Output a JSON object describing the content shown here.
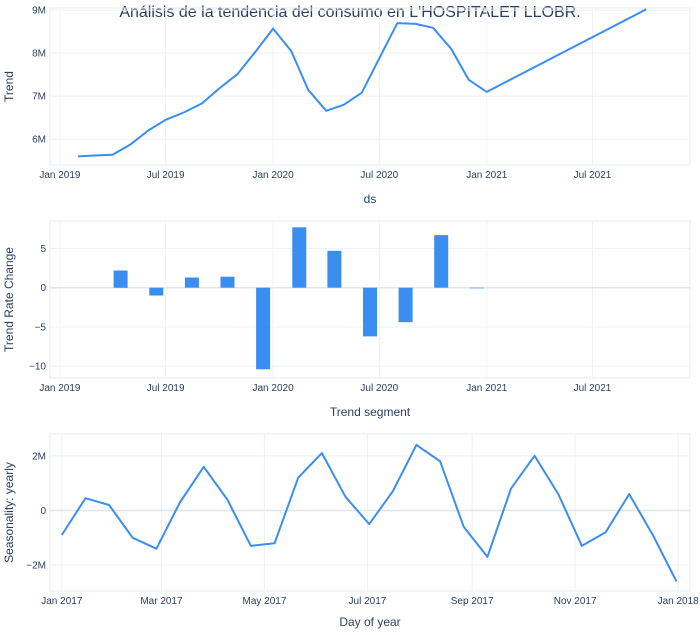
{
  "title": "Análisis de la tendencia del consumo en L'HOSPITALET LLOBR.",
  "colors": {
    "line": "#3a8ef0",
    "bar": "#3a8ef0"
  },
  "chart_data": [
    {
      "type": "line",
      "xlabel": "ds",
      "ylabel": "Trend",
      "xlim": [
        "2018-12-15",
        "2021-12-15"
      ],
      "ylim": [
        5400000,
        9050000
      ],
      "x_ticks": [
        "2019-01-01",
        "2019-07-01",
        "2020-01-01",
        "2020-07-01",
        "2021-01-01",
        "2021-07-01"
      ],
      "x_tick_labels": [
        "Jan 2019",
        "Jul 2019",
        "Jan 2020",
        "Jul 2020",
        "Jan 2021",
        "Jul 2021"
      ],
      "y_ticks": [
        6000000,
        7000000,
        8000000,
        9000000
      ],
      "y_tick_labels": [
        "6M",
        "7M",
        "8M",
        "9M"
      ],
      "series": [
        {
          "x": [
            "2019-02-01",
            "2019-03-01",
            "2019-04-01",
            "2019-05-01",
            "2019-06-01",
            "2019-07-01",
            "2019-08-01",
            "2019-09-01",
            "2019-10-01",
            "2019-11-01",
            "2019-12-01",
            "2020-01-01",
            "2020-02-01",
            "2020-03-01",
            "2020-04-01",
            "2020-05-01",
            "2020-06-01",
            "2020-07-01",
            "2020-08-01",
            "2020-09-01",
            "2020-10-01",
            "2020-11-01",
            "2020-12-01",
            "2021-01-01",
            "2021-10-01"
          ],
          "y": [
            5600000,
            5620000,
            5640000,
            5870000,
            6200000,
            6450000,
            6620000,
            6830000,
            7180000,
            7510000,
            8020000,
            8570000,
            8050000,
            7150000,
            6660000,
            6800000,
            7080000,
            7880000,
            8700000,
            8680000,
            8590000,
            8100000,
            7380000,
            7100000,
            9020000
          ]
        }
      ]
    },
    {
      "type": "bar",
      "xlabel": "Trend segment",
      "ylabel": "Trend Rate Change",
      "xlim": [
        "2018-12-15",
        "2021-12-15"
      ],
      "ylim": [
        -11.5,
        8.5
      ],
      "x_ticks": [
        "2019-01-01",
        "2019-07-01",
        "2020-01-01",
        "2020-07-01",
        "2021-01-01",
        "2021-07-01"
      ],
      "x_tick_labels": [
        "Jan 2019",
        "Jul 2019",
        "Jan 2020",
        "Jul 2020",
        "Jan 2021",
        "Jul 2021"
      ],
      "y_ticks": [
        5,
        0,
        -5,
        -10
      ],
      "y_tick_labels": [
        "5",
        "0",
        "−5",
        "−10"
      ],
      "bar_width_days": 24,
      "series": [
        {
          "x": [
            "2019-04-15",
            "2019-06-15",
            "2019-08-15",
            "2019-10-15",
            "2019-12-15",
            "2020-02-15",
            "2020-04-15",
            "2020-06-15",
            "2020-08-15",
            "2020-10-15",
            "2020-12-15"
          ],
          "y": [
            2.2,
            -1.0,
            1.3,
            1.4,
            -10.4,
            7.7,
            4.7,
            -6.2,
            -4.4,
            6.7,
            0
          ]
        }
      ]
    },
    {
      "type": "line",
      "xlabel": "Day of year",
      "ylabel": "Seasonality: yearly",
      "xlim": [
        "2016-12-25",
        "2018-01-08"
      ],
      "ylim": [
        -2950000,
        2800000
      ],
      "x_ticks": [
        "2017-01-01",
        "2017-03-01",
        "2017-05-01",
        "2017-07-01",
        "2017-09-01",
        "2017-11-01",
        "2018-01-01"
      ],
      "x_tick_labels": [
        "Jan 2017",
        "Mar 2017",
        "May 2017",
        "Jul 2017",
        "Sep 2017",
        "Nov 2017",
        "Jan 2018"
      ],
      "y_ticks": [
        2000000,
        0,
        -2000000
      ],
      "y_tick_labels": [
        "2M",
        "0",
        "−2M"
      ],
      "series": [
        {
          "x": [
            "2017-01-01",
            "2017-01-15",
            "2017-01-29",
            "2017-02-12",
            "2017-02-26",
            "2017-03-12",
            "2017-03-26",
            "2017-04-09",
            "2017-04-23",
            "2017-05-07",
            "2017-05-21",
            "2017-06-04",
            "2017-06-18",
            "2017-07-02",
            "2017-07-16",
            "2017-07-30",
            "2017-08-13",
            "2017-08-27",
            "2017-09-10",
            "2017-09-24",
            "2017-10-08",
            "2017-10-22",
            "2017-11-05",
            "2017-11-19",
            "2017-12-03",
            "2017-12-17",
            "2017-12-31"
          ],
          "y": [
            -900000,
            450000,
            200000,
            -1000000,
            -1400000,
            300000,
            1600000,
            400000,
            -1300000,
            -1200000,
            1200000,
            2100000,
            500000,
            -500000,
            700000,
            2400000,
            1800000,
            -600000,
            -1700000,
            800000,
            2000000,
            600000,
            -1300000,
            -800000,
            600000,
            -900000,
            -2600000
          ]
        }
      ]
    }
  ]
}
